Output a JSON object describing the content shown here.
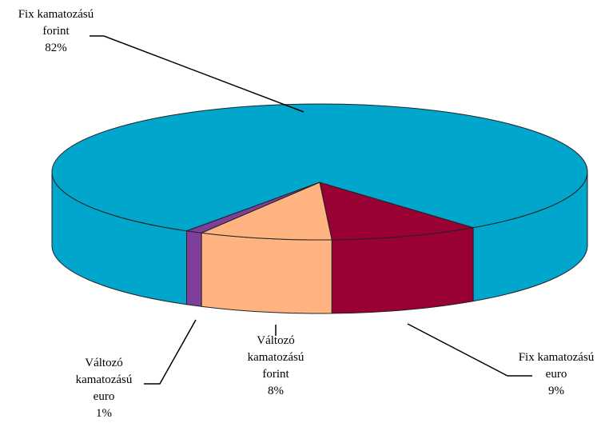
{
  "chart_data": {
    "type": "pie3d",
    "categories": [
      "Fix kamatozású euro",
      "Változó kamatozású forint",
      "Változó kamatozású euro",
      "Fix kamatozású forint"
    ],
    "values": [
      9,
      8,
      1,
      82
    ],
    "value_labels": [
      "9%",
      "8%",
      "1%",
      "82%"
    ],
    "colors": [
      "#990033",
      "#ffb380",
      "#7f3f98",
      "#00a6cc"
    ]
  }
}
